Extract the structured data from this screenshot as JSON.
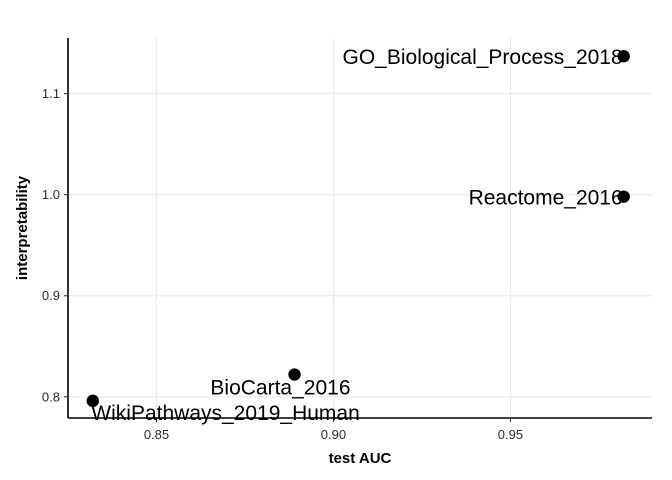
{
  "chart_data": {
    "type": "scatter",
    "title": "",
    "xlabel": "test AUC",
    "ylabel": "interpretability",
    "xlim": [
      0.825,
      0.99
    ],
    "ylim": [
      0.779,
      1.155
    ],
    "x_ticks": [
      0.85,
      0.9,
      0.95
    ],
    "x_tick_labels": [
      "0.85",
      "0.90",
      "0.95"
    ],
    "y_ticks": [
      0.8,
      0.9,
      1.0,
      1.1
    ],
    "y_tick_labels": [
      "0.8",
      "0.9",
      "1.0",
      "1.1"
    ],
    "grid": true,
    "legend": "none",
    "point_color": "#000000",
    "points": [
      {
        "label": "GO_Biological_Process_2018",
        "x": 0.982,
        "y": 1.137
      },
      {
        "label": "Reactome_2016",
        "x": 0.982,
        "y": 0.998
      },
      {
        "label": "BioCarta_2016",
        "x": 0.889,
        "y": 0.822
      },
      {
        "label": "WikiPathways_2019_Human",
        "x": 0.832,
        "y": 0.796
      }
    ]
  }
}
